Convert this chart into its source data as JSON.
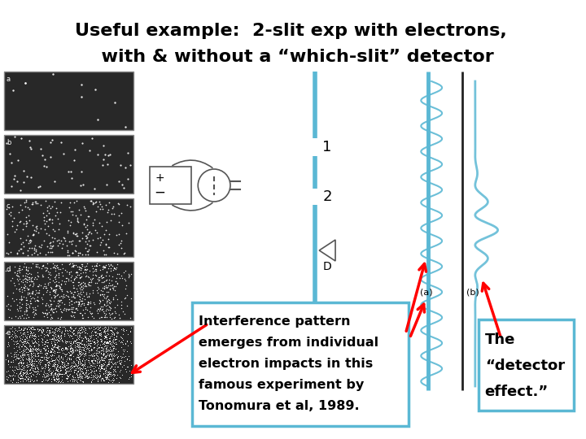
{
  "title_line1": "Useful example:  2-slit exp with electrons,",
  "title_line2": "  with & without a “which-slit” detector",
  "box1_text_lines": [
    "Interference pattern",
    "emerges from individual",
    "electron impacts in this",
    "famous experiment by",
    "Tonomura et al, 1989."
  ],
  "box2_text_lines": [
    "The",
    "“detector",
    "effect.”"
  ],
  "slit_color": "#5bb8d4",
  "box_edge_color": "#5bb8d4",
  "arrow_color": "red",
  "label1": "1",
  "label2": "2",
  "label_D": "D",
  "bg_color": "#ffffff",
  "text_color": "#000000",
  "panel_labels": [
    "a",
    "b",
    "c",
    "d",
    "e"
  ],
  "panel_n_dots": [
    10,
    60,
    300,
    800,
    2000
  ]
}
